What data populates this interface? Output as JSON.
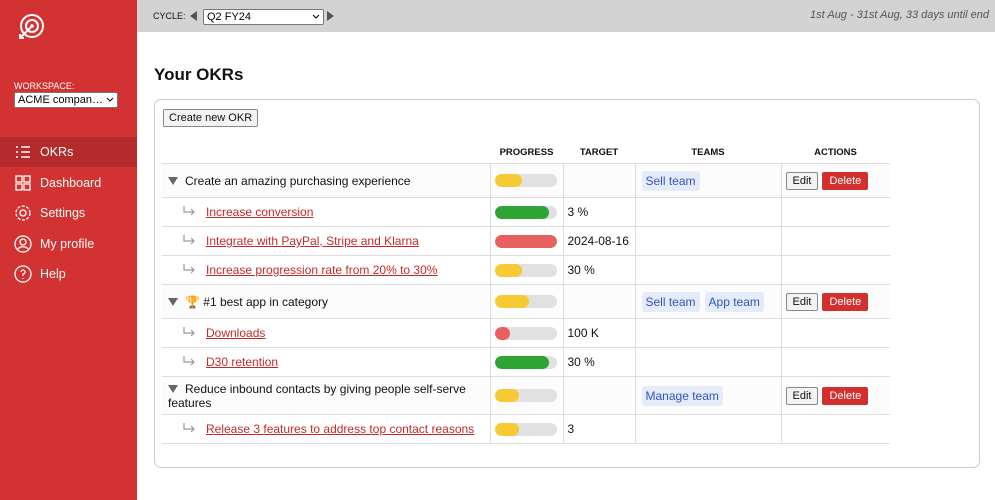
{
  "sidebar": {
    "workspace_label": "WORKSPACE:",
    "workspace": "ACME compan…",
    "nav": [
      {
        "label": "OKRs",
        "active": true
      },
      {
        "label": "Dashboard",
        "active": false
      },
      {
        "label": "Settings",
        "active": false
      },
      {
        "label": "My profile",
        "active": false
      },
      {
        "label": "Help",
        "active": false
      }
    ]
  },
  "topbar": {
    "cycle_label": "CYCLE:",
    "cycle": "Q2 FY24",
    "date_range": "1st Aug - 31st Aug, 33 days until end"
  },
  "page": {
    "title": "Your OKRs",
    "create_button": "Create new OKR",
    "columns": [
      "PROGRESS",
      "TARGET",
      "TEAMS",
      "ACTIONS"
    ],
    "edit_label": "Edit",
    "delete_label": "Delete",
    "objectives": [
      {
        "title": "Create an amazing purchasing experience",
        "progress": 45,
        "color": "#f7c933",
        "teams": [
          "Sell team"
        ],
        "key_results": [
          {
            "title": "Increase conversion",
            "progress": 88,
            "color": "#2ea533",
            "target": "3 %"
          },
          {
            "title": "Integrate with PayPal, Stripe and Klarna",
            "progress": 100,
            "color": "#e8605f",
            "target": "2024-08-16"
          },
          {
            "title": "Increase progression rate from 20% to 30%",
            "progress": 45,
            "color": "#f7c933",
            "target": "30 %"
          }
        ]
      },
      {
        "title": "🏆 #1 best app in category",
        "progress": 55,
        "color": "#f7c933",
        "teams": [
          "Sell team",
          "App team"
        ],
        "key_results": [
          {
            "title": "Downloads",
            "progress": 25,
            "color": "#e8605f",
            "target": "100 K"
          },
          {
            "title": "D30 retention",
            "progress": 88,
            "color": "#2ea533",
            "target": "30 %"
          }
        ]
      },
      {
        "title": "Reduce inbound contacts by giving people self-serve features",
        "progress": 40,
        "color": "#f7c933",
        "teams": [
          "Manage team"
        ],
        "key_results": [
          {
            "title": "Release 3 features to address top contact reasons",
            "progress": 40,
            "color": "#f7c933",
            "target": "3"
          }
        ]
      }
    ]
  }
}
